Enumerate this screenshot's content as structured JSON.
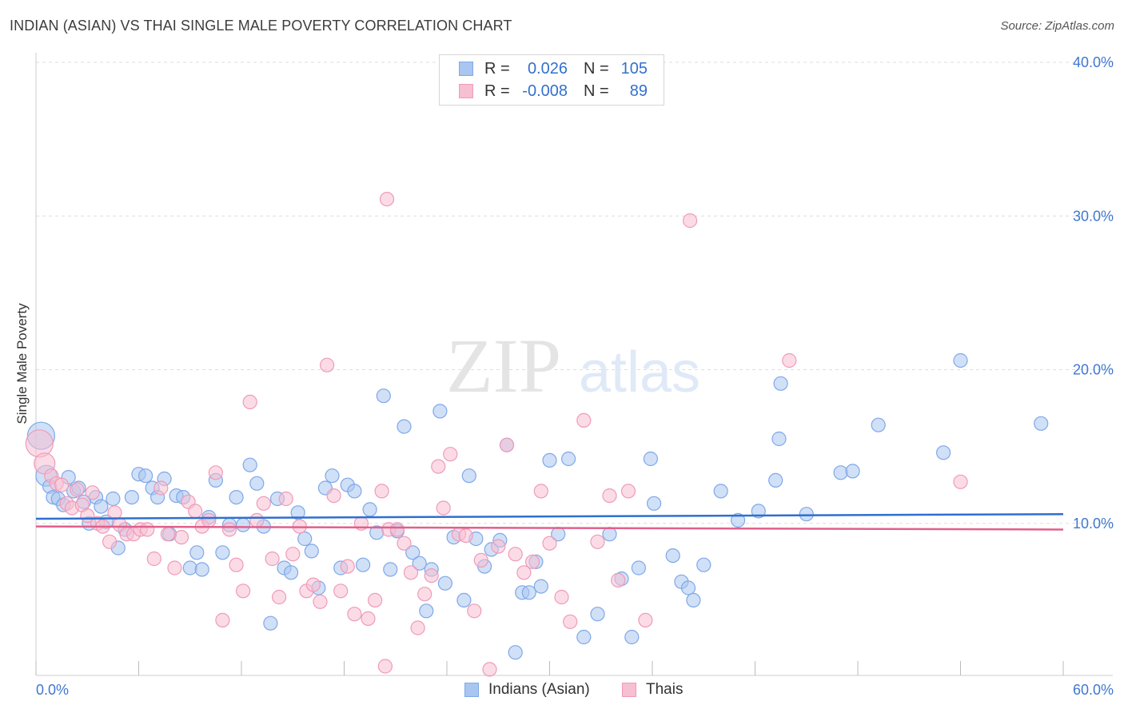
{
  "title": "INDIAN (ASIAN) VS THAI SINGLE MALE POVERTY CORRELATION CHART",
  "source": "Source: ZipAtlas.com",
  "watermark": {
    "zip": "ZIP",
    "atlas": "atlas"
  },
  "legend": {
    "rows": [
      {
        "r_label": "R =",
        "r_value": "0.026",
        "n_label": "N =",
        "n_value": "105",
        "color": "#7fa8e8"
      },
      {
        "r_label": "R =",
        "r_value": "-0.008",
        "n_label": "N =",
        "n_value": "89",
        "color": "#f09ab8"
      }
    ]
  },
  "bottom_legend": [
    "Indians (Asian)",
    "Thais"
  ],
  "colors": {
    "blue_fill": "#a9c6f0",
    "blue_stroke": "#7fa8e8",
    "blue_line": "#2f6fd0",
    "pink_fill": "#f7bfd2",
    "pink_stroke": "#f09ab8",
    "pink_line": "#e0608c",
    "axis_text": "#3f78d0",
    "grid": "#dddddd"
  },
  "chart_data": {
    "type": "scatter",
    "title": "INDIAN (ASIAN) VS THAI SINGLE MALE POVERTY CORRELATION CHART",
    "xlabel": "",
    "ylabel": "Single Male Poverty",
    "xlim": [
      0,
      60
    ],
    "ylim": [
      0,
      40
    ],
    "x_tick_labels": [
      "0.0%",
      "60.0%"
    ],
    "y_tick_labels": [
      "10.0%",
      "20.0%",
      "30.0%",
      "40.0%"
    ],
    "y_ticks": [
      10,
      20,
      30,
      40
    ],
    "grid": true,
    "legend_position": "top-center",
    "series": [
      {
        "name": "Indians (Asian)",
        "r": 0.026,
        "n": 105,
        "trend": [
          [
            0,
            10.3
          ],
          [
            60,
            10.6
          ]
        ],
        "points": [
          [
            0.3,
            15.7
          ],
          [
            0.6,
            13.1
          ],
          [
            0.8,
            12.4
          ],
          [
            1.0,
            11.7
          ],
          [
            1.3,
            11.6
          ],
          [
            1.6,
            11.2
          ],
          [
            1.9,
            13.0
          ],
          [
            2.2,
            12.1
          ],
          [
            2.5,
            12.3
          ],
          [
            2.8,
            11.4
          ],
          [
            3.1,
            10.0
          ],
          [
            3.5,
            11.7
          ],
          [
            3.8,
            11.1
          ],
          [
            4.1,
            10.1
          ],
          [
            4.5,
            11.6
          ],
          [
            4.8,
            8.4
          ],
          [
            5.2,
            9.6
          ],
          [
            5.6,
            11.7
          ],
          [
            6.0,
            13.2
          ],
          [
            6.4,
            13.1
          ],
          [
            6.8,
            12.3
          ],
          [
            7.1,
            11.7
          ],
          [
            7.5,
            12.9
          ],
          [
            7.8,
            9.3
          ],
          [
            8.2,
            11.8
          ],
          [
            8.6,
            11.7
          ],
          [
            9.0,
            7.1
          ],
          [
            9.4,
            8.1
          ],
          [
            9.7,
            7.0
          ],
          [
            10.1,
            10.4
          ],
          [
            10.5,
            12.8
          ],
          [
            10.9,
            8.1
          ],
          [
            11.3,
            9.9
          ],
          [
            11.7,
            11.7
          ],
          [
            12.1,
            9.9
          ],
          [
            12.5,
            13.8
          ],
          [
            12.9,
            12.6
          ],
          [
            13.3,
            9.8
          ],
          [
            13.7,
            3.5
          ],
          [
            14.1,
            11.6
          ],
          [
            14.5,
            7.1
          ],
          [
            14.9,
            6.8
          ],
          [
            15.3,
            10.7
          ],
          [
            15.7,
            9.0
          ],
          [
            16.1,
            8.2
          ],
          [
            16.5,
            5.8
          ],
          [
            16.9,
            12.3
          ],
          [
            17.3,
            13.1
          ],
          [
            17.8,
            7.1
          ],
          [
            18.2,
            12.5
          ],
          [
            18.6,
            12.1
          ],
          [
            19.1,
            7.3
          ],
          [
            19.5,
            10.9
          ],
          [
            19.9,
            9.4
          ],
          [
            20.3,
            18.3
          ],
          [
            20.7,
            7.0
          ],
          [
            21.1,
            9.5
          ],
          [
            21.5,
            16.3
          ],
          [
            22.0,
            8.1
          ],
          [
            22.4,
            7.4
          ],
          [
            22.8,
            4.3
          ],
          [
            23.1,
            7.0
          ],
          [
            23.6,
            17.3
          ],
          [
            23.9,
            6.1
          ],
          [
            24.4,
            9.1
          ],
          [
            25.0,
            5.0
          ],
          [
            25.3,
            13.1
          ],
          [
            25.7,
            9.0
          ],
          [
            26.2,
            7.2
          ],
          [
            26.6,
            8.3
          ],
          [
            27.1,
            8.9
          ],
          [
            27.5,
            15.1
          ],
          [
            28.0,
            1.6
          ],
          [
            28.4,
            5.5
          ],
          [
            28.8,
            5.5
          ],
          [
            29.2,
            7.5
          ],
          [
            29.5,
            5.9
          ],
          [
            30.0,
            14.1
          ],
          [
            30.5,
            9.3
          ],
          [
            31.1,
            14.2
          ],
          [
            32.0,
            2.6
          ],
          [
            32.8,
            4.1
          ],
          [
            33.5,
            9.3
          ],
          [
            34.2,
            6.4
          ],
          [
            34.8,
            2.6
          ],
          [
            35.2,
            7.1
          ],
          [
            35.9,
            14.2
          ],
          [
            36.1,
            11.3
          ],
          [
            37.2,
            7.9
          ],
          [
            37.7,
            6.2
          ],
          [
            38.1,
            5.8
          ],
          [
            38.4,
            5.0
          ],
          [
            39.0,
            7.3
          ],
          [
            40.0,
            12.1
          ],
          [
            41.0,
            10.2
          ],
          [
            42.2,
            10.8
          ],
          [
            43.2,
            12.8
          ],
          [
            43.4,
            15.5
          ],
          [
            43.5,
            19.1
          ],
          [
            45.0,
            10.6
          ],
          [
            47.0,
            13.3
          ],
          [
            47.7,
            13.4
          ],
          [
            49.2,
            16.4
          ],
          [
            53.0,
            14.6
          ],
          [
            54.0,
            20.6
          ],
          [
            58.7,
            16.5
          ]
        ]
      },
      {
        "name": "Thais",
        "r": -0.008,
        "n": 89,
        "trend": [
          [
            0,
            9.8
          ],
          [
            60,
            9.6
          ]
        ],
        "points": [
          [
            0.2,
            15.2
          ],
          [
            0.5,
            13.9
          ],
          [
            0.9,
            13.1
          ],
          [
            1.2,
            12.6
          ],
          [
            1.5,
            12.5
          ],
          [
            1.8,
            11.3
          ],
          [
            2.1,
            11.0
          ],
          [
            2.4,
            12.2
          ],
          [
            2.7,
            11.2
          ],
          [
            3.0,
            10.5
          ],
          [
            3.3,
            12.0
          ],
          [
            3.6,
            10.0
          ],
          [
            3.9,
            9.8
          ],
          [
            4.3,
            8.8
          ],
          [
            4.6,
            10.7
          ],
          [
            4.9,
            9.9
          ],
          [
            5.3,
            9.3
          ],
          [
            5.7,
            9.3
          ],
          [
            6.1,
            9.6
          ],
          [
            6.5,
            9.6
          ],
          [
            6.9,
            7.7
          ],
          [
            7.3,
            12.3
          ],
          [
            7.7,
            9.3
          ],
          [
            8.1,
            7.1
          ],
          [
            8.5,
            9.1
          ],
          [
            8.9,
            11.4
          ],
          [
            9.3,
            10.8
          ],
          [
            9.7,
            9.8
          ],
          [
            10.1,
            10.2
          ],
          [
            10.5,
            13.3
          ],
          [
            10.9,
            3.7
          ],
          [
            11.3,
            9.6
          ],
          [
            11.7,
            7.3
          ],
          [
            12.1,
            5.6
          ],
          [
            12.5,
            17.9
          ],
          [
            12.9,
            10.2
          ],
          [
            13.3,
            11.3
          ],
          [
            13.8,
            7.7
          ],
          [
            14.2,
            5.2
          ],
          [
            14.6,
            11.6
          ],
          [
            15.0,
            8.0
          ],
          [
            15.4,
            9.8
          ],
          [
            15.8,
            5.6
          ],
          [
            16.2,
            6.0
          ],
          [
            16.6,
            4.9
          ],
          [
            17.0,
            20.3
          ],
          [
            17.4,
            11.8
          ],
          [
            17.8,
            5.6
          ],
          [
            18.2,
            7.2
          ],
          [
            18.6,
            4.1
          ],
          [
            19.0,
            10.0
          ],
          [
            19.4,
            3.8
          ],
          [
            19.8,
            5.0
          ],
          [
            20.2,
            12.1
          ],
          [
            20.6,
            9.6
          ],
          [
            21.1,
            9.6
          ],
          [
            21.5,
            8.7
          ],
          [
            21.9,
            6.8
          ],
          [
            22.3,
            3.2
          ],
          [
            22.7,
            5.4
          ],
          [
            23.1,
            6.6
          ],
          [
            23.5,
            13.7
          ],
          [
            23.8,
            11.0
          ],
          [
            24.2,
            14.5
          ],
          [
            24.7,
            9.3
          ],
          [
            25.1,
            9.2
          ],
          [
            25.6,
            4.3
          ],
          [
            26.0,
            7.6
          ],
          [
            26.5,
            0.5
          ],
          [
            27.0,
            8.5
          ],
          [
            27.5,
            15.1
          ],
          [
            28.0,
            8.0
          ],
          [
            28.5,
            6.8
          ],
          [
            29.0,
            7.5
          ],
          [
            29.5,
            12.1
          ],
          [
            30.0,
            8.7
          ],
          [
            30.7,
            5.2
          ],
          [
            31.2,
            3.6
          ],
          [
            32.0,
            16.7
          ],
          [
            32.8,
            8.8
          ],
          [
            33.5,
            11.8
          ],
          [
            34.0,
            6.3
          ],
          [
            34.6,
            12.1
          ],
          [
            35.6,
            3.7
          ],
          [
            20.5,
            31.1
          ],
          [
            38.2,
            29.7
          ],
          [
            44.0,
            20.6
          ],
          [
            54.0,
            12.7
          ],
          [
            20.4,
            0.7
          ]
        ]
      }
    ]
  }
}
